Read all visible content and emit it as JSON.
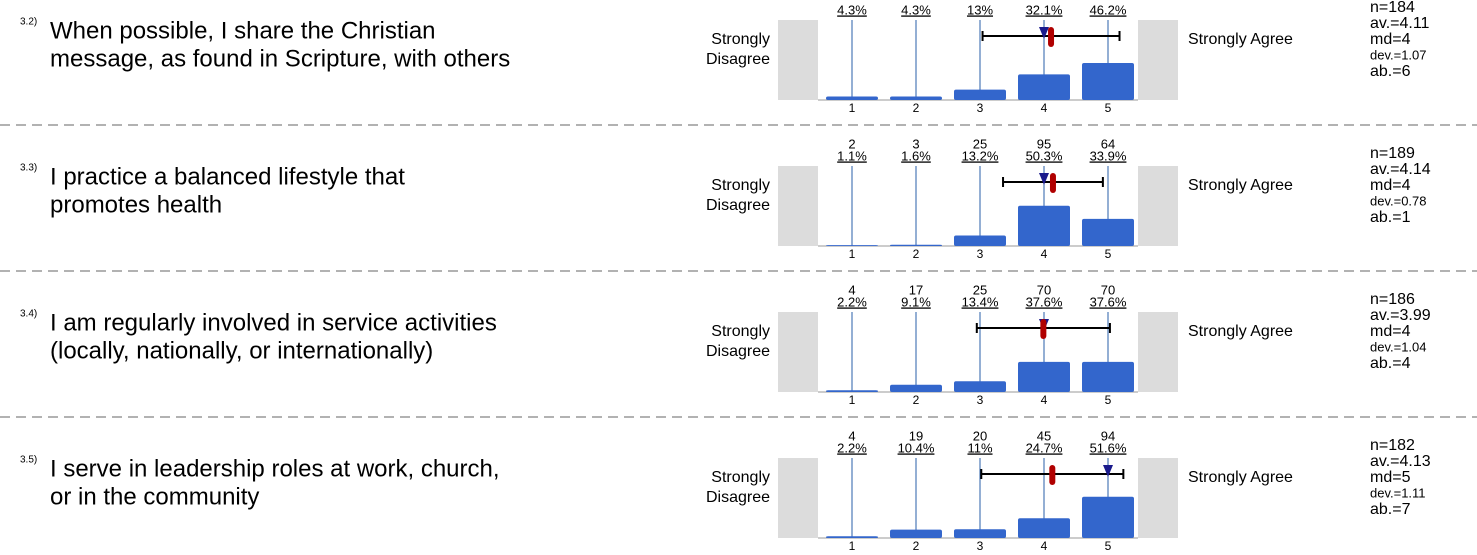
{
  "scale": [
    1,
    2,
    3,
    4,
    5
  ],
  "left_label": [
    "Strongly",
    "Disagree"
  ],
  "right_label": "Strongly Agree",
  "items": [
    {
      "number": "3.2)",
      "question": [
        "When possible, I share the Christian",
        "message, as found in Scripture, with others"
      ],
      "percents": [
        4.3,
        4.3,
        13,
        32.1,
        46.2
      ],
      "percent_labels": [
        "4.3%",
        "4.3%",
        "13%",
        "32.1%",
        "46.2%"
      ],
      "stats": {
        "n": {
          "value": 184,
          "label": "n=184"
        },
        "av": {
          "value": 4.11,
          "label": "av.=4.11"
        },
        "md": {
          "value": 4,
          "label": "md=4"
        },
        "dev": {
          "value": 1.07,
          "label": "dev.=1.07"
        },
        "ab": {
          "value": 6,
          "label": "ab.=6"
        }
      }
    },
    {
      "number": "3.3)",
      "question": [
        "I practice a balanced lifestyle that",
        "promotes health"
      ],
      "counts": [
        2,
        3,
        25,
        95,
        64
      ],
      "percents": [
        1.1,
        1.6,
        13.2,
        50.3,
        33.9
      ],
      "percent_labels": [
        "1.1%",
        "1.6%",
        "13.2%",
        "50.3%",
        "33.9%"
      ],
      "stats": {
        "n": {
          "value": 189,
          "label": "n=189"
        },
        "av": {
          "value": 4.14,
          "label": "av.=4.14"
        },
        "md": {
          "value": 4,
          "label": "md=4"
        },
        "dev": {
          "value": 0.78,
          "label": "dev.=0.78"
        },
        "ab": {
          "value": 1,
          "label": "ab.=1"
        }
      }
    },
    {
      "number": "3.4)",
      "question": [
        "I am regularly involved in service activities",
        "(locally, nationally, or internationally)"
      ],
      "counts": [
        4,
        17,
        25,
        70,
        70
      ],
      "percents": [
        2.2,
        9.1,
        13.4,
        37.6,
        37.6
      ],
      "percent_labels": [
        "2.2%",
        "9.1%",
        "13.4%",
        "37.6%",
        "37.6%"
      ],
      "stats": {
        "n": {
          "value": 186,
          "label": "n=186"
        },
        "av": {
          "value": 3.99,
          "label": "av.=3.99"
        },
        "md": {
          "value": 4,
          "label": "md=4"
        },
        "dev": {
          "value": 1.04,
          "label": "dev.=1.04"
        },
        "ab": {
          "value": 4,
          "label": "ab.=4"
        }
      }
    },
    {
      "number": "3.5)",
      "question": [
        "I serve in leadership roles at work, church,",
        "or in the community"
      ],
      "counts": [
        4,
        19,
        20,
        45,
        94
      ],
      "percents": [
        2.2,
        10.4,
        11,
        24.7,
        51.6
      ],
      "percent_labels": [
        "2.2%",
        "10.4%",
        "11%",
        "24.7%",
        "51.6%"
      ],
      "stats": {
        "n": {
          "value": 182,
          "label": "n=182"
        },
        "av": {
          "value": 4.13,
          "label": "av.=4.13"
        },
        "md": {
          "value": 5,
          "label": "md=5"
        },
        "dev": {
          "value": 1.11,
          "label": "dev.=1.11"
        },
        "ab": {
          "value": 7,
          "label": "ab.=7"
        }
      }
    }
  ]
}
